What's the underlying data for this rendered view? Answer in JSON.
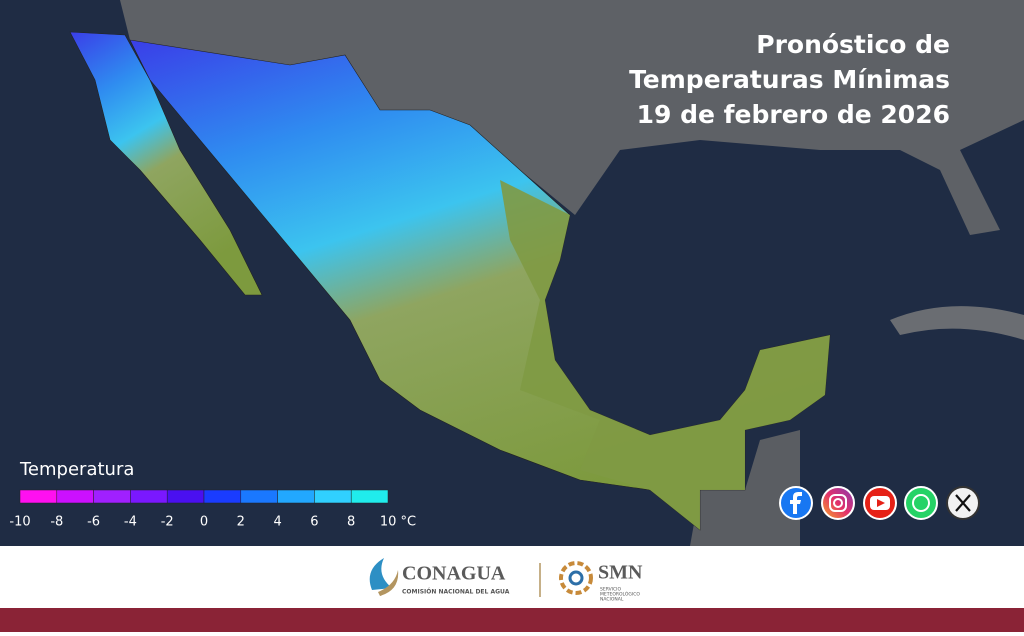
{
  "header": {
    "title_lines": [
      "Pronóstico de",
      "Temperaturas Mínimas",
      "19 de febrero de 2026"
    ]
  },
  "legend": {
    "title": "Temperatura",
    "colors": [
      "#ff10f0",
      "#cc10ff",
      "#a020ff",
      "#7a18ff",
      "#4a10f0",
      "#1a3cff",
      "#1a78ff",
      "#22a8ff",
      "#30d0ff",
      "#20ecec"
    ],
    "labels": [
      "-10",
      "-8",
      "-6",
      "-4",
      "-2",
      "0",
      "2",
      "4",
      "6",
      "8",
      "10 °C"
    ]
  },
  "footer": {
    "conagua": "CONAGUA",
    "conagua_sub": "COMISIÓN NACIONAL DEL AGUA",
    "smn": "SMN",
    "smn_sub": [
      "SERVICIO",
      "METEOROLÓGICO",
      "NACIONAL"
    ]
  }
}
